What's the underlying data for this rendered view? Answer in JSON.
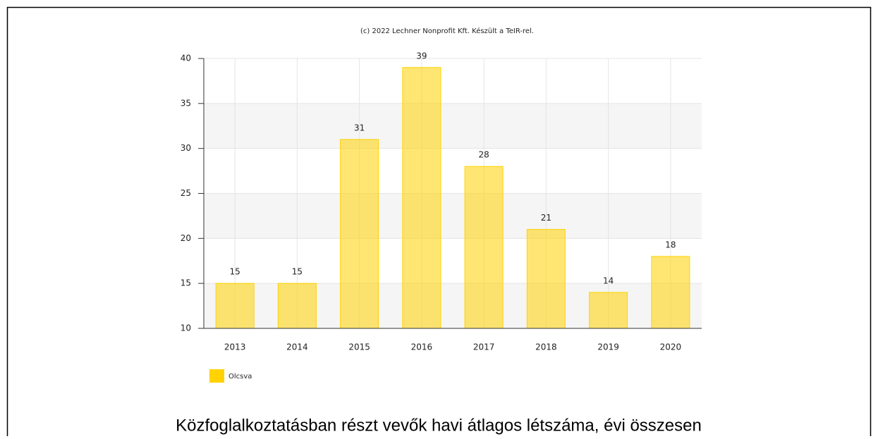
{
  "chart_data": {
    "type": "bar",
    "credits": "(c) 2022 Lechner Nonprofit Kft. Készült a TeIR-rel.",
    "caption": "Közfoglalkoztatásban részt vevők havi átlagos létszáma, évi összesen",
    "categories": [
      "2013",
      "2014",
      "2015",
      "2016",
      "2017",
      "2018",
      "2019",
      "2020"
    ],
    "series": [
      {
        "name": "Olcsva",
        "color": "#ffd200",
        "values": [
          15,
          15,
          31,
          39,
          28,
          21,
          14,
          18
        ]
      }
    ],
    "ylim": [
      10,
      40
    ],
    "yticks": [
      10,
      15,
      20,
      25,
      30,
      35,
      40
    ],
    "grid": true,
    "legend": "bottom-left"
  }
}
